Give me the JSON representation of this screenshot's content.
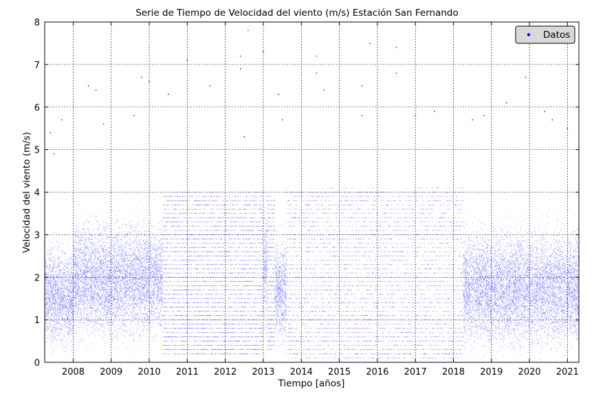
{
  "chart_data": {
    "type": "scatter",
    "title": "Serie de Tiempo de Velocidad del viento (m/s) Estación San Fernando",
    "xlabel": "Tiempo [años]",
    "ylabel": "Velocidad del viento (m/s)",
    "xlim": [
      2007.25,
      2021.3
    ],
    "ylim": [
      0,
      8
    ],
    "x_ticks": [
      "2008",
      "2009",
      "2010",
      "2011",
      "2012",
      "2013",
      "2014",
      "2015",
      "2016",
      "2017",
      "2018",
      "2019",
      "2020",
      "2021"
    ],
    "y_ticks": [
      "0",
      "1",
      "2",
      "3",
      "4",
      "5",
      "6",
      "7",
      "8"
    ],
    "grid": true,
    "legend_position": "top-right",
    "series": [
      {
        "name": "Datos",
        "color": "#0000ff",
        "marker": "dot",
        "segments": [
          {
            "x_range": [
              2007.25,
              2008.0
            ],
            "center": 1.55,
            "spread": 0.85,
            "quantized": false
          },
          {
            "x_range": [
              2008.0,
              2010.35
            ],
            "center": 1.95,
            "spread": 1.0,
            "quantized": false
          },
          {
            "x_range": [
              2010.35,
              2013.0
            ],
            "quantized": true,
            "step": 0.1,
            "y_range": [
              0.2,
              4.0
            ]
          },
          {
            "x_range": [
              2013.0,
              2013.1
            ],
            "center": 2.2,
            "spread": 1.0,
            "quantized": false
          },
          {
            "x_range": [
              2013.1,
              2013.3
            ],
            "quantized": true,
            "step": 0.1,
            "y_range": [
              0.3,
              3.9
            ]
          },
          {
            "x_range": [
              2013.3,
              2013.6
            ],
            "center": 1.7,
            "spread": 0.9,
            "quantized": false
          },
          {
            "x_range": [
              2013.6,
              2018.25
            ],
            "quantized": true,
            "step": 0.1,
            "y_range": [
              0.1,
              4.1
            ]
          },
          {
            "x_range": [
              2018.25,
              2021.3
            ],
            "center": 1.75,
            "spread": 1.0,
            "quantized": false
          }
        ],
        "sample_outliers": [
          [
            2007.4,
            5.4
          ],
          [
            2007.5,
            4.9
          ],
          [
            2007.7,
            5.7
          ],
          [
            2008.4,
            6.5
          ],
          [
            2008.6,
            6.4
          ],
          [
            2008.8,
            5.6
          ],
          [
            2009.6,
            5.8
          ],
          [
            2009.8,
            6.7
          ],
          [
            2010.0,
            6.6
          ],
          [
            2010.5,
            6.3
          ],
          [
            2011.0,
            7.1
          ],
          [
            2011.6,
            6.5
          ],
          [
            2012.4,
            6.9
          ],
          [
            2012.4,
            7.2
          ],
          [
            2012.6,
            7.8
          ],
          [
            2012.5,
            5.3
          ],
          [
            2013.0,
            7.3
          ],
          [
            2013.4,
            6.3
          ],
          [
            2013.5,
            5.7
          ],
          [
            2014.4,
            7.2
          ],
          [
            2014.4,
            6.8
          ],
          [
            2014.6,
            6.4
          ],
          [
            2015.6,
            6.5
          ],
          [
            2015.6,
            5.8
          ],
          [
            2015.8,
            7.5
          ],
          [
            2016.5,
            7.4
          ],
          [
            2016.5,
            6.8
          ],
          [
            2017.0,
            5.8
          ],
          [
            2017.5,
            5.9
          ],
          [
            2018.5,
            5.7
          ],
          [
            2018.8,
            5.8
          ],
          [
            2019.4,
            6.1
          ],
          [
            2019.9,
            6.7
          ],
          [
            2020.4,
            5.9
          ],
          [
            2020.6,
            5.7
          ],
          [
            2021.0,
            5.5
          ]
        ]
      }
    ]
  }
}
